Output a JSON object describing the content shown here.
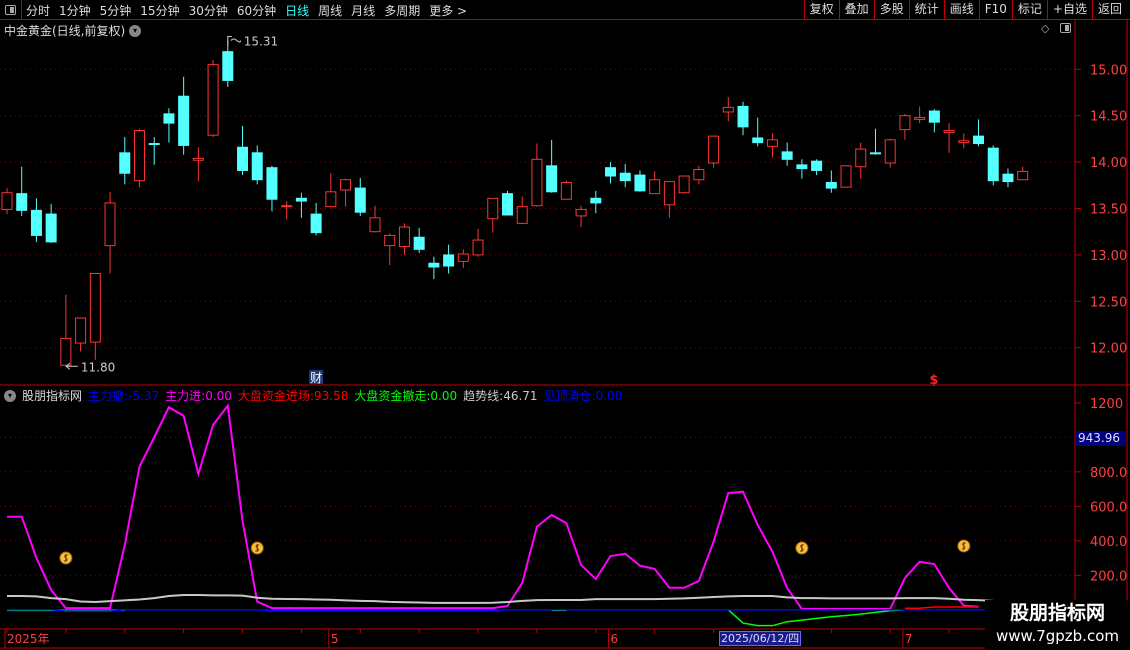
{
  "toolbar": {
    "periods": [
      "分时",
      "1分钟",
      "5分钟",
      "15分钟",
      "30分钟",
      "60分钟",
      "日线",
      "周线",
      "月线",
      "多周期",
      "更多 >"
    ],
    "active_period": "日线",
    "buttons": [
      "复权",
      "叠加",
      "多股",
      "统计",
      "画线",
      "F10",
      "标记",
      "+自选",
      "返回"
    ]
  },
  "title": "中金黄金(日线,前复权)",
  "colors": {
    "up": "#ff3333",
    "down": "#54ffff",
    "grid": "#8b0000",
    "axis": "#c00000",
    "main": "#ff00ff",
    "trend": "#c8c8c8",
    "in": "#ff0000",
    "out": "#00ff00",
    "zero": "#0000ff"
  },
  "price_axis": {
    "ticks": [
      "15.00",
      "14.50",
      "14.00",
      "13.50",
      "13.00",
      "12.50",
      "12.00"
    ]
  },
  "markers": {
    "high": "15.31",
    "low": "11.80",
    "finance_badge": "财",
    "signal_badge": "$"
  },
  "indicator": {
    "name": "股朋指标网",
    "items": [
      {
        "label": "主力撤",
        "value": "-5.37",
        "color": "#0000ff"
      },
      {
        "label": "主力进",
        "value": "0.00",
        "color": "#ff00ff"
      },
      {
        "label": "大盘资金进场",
        "value": "93.58",
        "color": "#ff0000"
      },
      {
        "label": "大盘资金撤走",
        "value": "0.00",
        "color": "#00ff00"
      },
      {
        "label": "趋势线",
        "value": "46.71",
        "color": "#c8c8c8"
      },
      {
        "label": "见顶清仓",
        "value": "0.00",
        "color": "#0000ff"
      }
    ],
    "axis_ticks": [
      "1200",
      "800.0",
      "600.0",
      "400.0",
      "200.0"
    ],
    "current_value": "943.96"
  },
  "date_axis": {
    "labels": [
      {
        "text": "2025年",
        "index": 0
      },
      {
        "text": "5",
        "index": 22
      },
      {
        "text": "6",
        "index": 41
      },
      {
        "text": "7",
        "index": 61
      }
    ],
    "selected": "2025/06/12/四"
  },
  "watermark": {
    "name": "股朋指标网",
    "url": "www.7gpzb.com"
  },
  "chart_data": [
    {
      "type": "candlestick",
      "ylim": [
        11.6,
        15.4
      ],
      "ohlc": [
        [
          13.49,
          13.72,
          13.44,
          13.67
        ],
        [
          13.66,
          13.95,
          13.42,
          13.48
        ],
        [
          13.48,
          13.61,
          13.14,
          13.21
        ],
        [
          13.44,
          13.55,
          13.13,
          13.14
        ],
        [
          11.81,
          12.57,
          11.8,
          12.1
        ],
        [
          12.05,
          12.32,
          11.96,
          12.32
        ],
        [
          12.06,
          12.8,
          11.87,
          12.8
        ],
        [
          13.1,
          13.68,
          12.8,
          13.56
        ],
        [
          14.1,
          14.27,
          13.76,
          13.88
        ],
        [
          13.8,
          14.36,
          13.73,
          14.34
        ],
        [
          14.2,
          14.27,
          13.97,
          14.19
        ],
        [
          14.52,
          14.58,
          14.21,
          14.42
        ],
        [
          14.71,
          14.92,
          14.08,
          14.18
        ],
        [
          14.02,
          14.16,
          13.79,
          14.04
        ],
        [
          14.29,
          15.1,
          14.27,
          15.05
        ],
        [
          15.19,
          15.31,
          14.81,
          14.88
        ],
        [
          14.16,
          14.39,
          13.86,
          13.91
        ],
        [
          14.1,
          14.18,
          13.76,
          13.81
        ],
        [
          13.94,
          13.96,
          13.47,
          13.6
        ],
        [
          13.52,
          13.58,
          13.38,
          13.53
        ],
        [
          13.61,
          13.67,
          13.4,
          13.58
        ],
        [
          13.44,
          13.56,
          13.21,
          13.24
        ],
        [
          13.52,
          13.88,
          13.52,
          13.68
        ],
        [
          13.7,
          13.82,
          13.52,
          13.81
        ],
        [
          13.72,
          13.83,
          13.42,
          13.46
        ],
        [
          13.25,
          13.53,
          13.24,
          13.4
        ],
        [
          13.1,
          13.23,
          12.89,
          13.21
        ],
        [
          13.09,
          13.34,
          13.0,
          13.3
        ],
        [
          13.19,
          13.29,
          13.02,
          13.06
        ],
        [
          12.91,
          12.98,
          12.74,
          12.87
        ],
        [
          13.0,
          13.11,
          12.8,
          12.88
        ],
        [
          12.93,
          13.06,
          12.86,
          13.01
        ],
        [
          13.0,
          13.28,
          12.98,
          13.16
        ],
        [
          13.39,
          13.61,
          13.24,
          13.61
        ],
        [
          13.66,
          13.69,
          13.43,
          13.43
        ],
        [
          13.34,
          13.63,
          13.33,
          13.52
        ],
        [
          13.53,
          14.2,
          13.52,
          14.03
        ],
        [
          13.96,
          14.24,
          13.67,
          13.68
        ],
        [
          13.6,
          13.8,
          13.6,
          13.78
        ],
        [
          13.42,
          13.53,
          13.3,
          13.49
        ],
        [
          13.61,
          13.69,
          13.45,
          13.56
        ],
        [
          13.94,
          14.0,
          13.77,
          13.85
        ],
        [
          13.88,
          13.98,
          13.73,
          13.8
        ],
        [
          13.86,
          13.91,
          13.68,
          13.69
        ],
        [
          13.66,
          13.9,
          13.66,
          13.81
        ],
        [
          13.54,
          13.79,
          13.4,
          13.79
        ],
        [
          13.67,
          13.85,
          13.66,
          13.85
        ],
        [
          13.81,
          13.96,
          13.76,
          13.92
        ],
        [
          13.99,
          14.28,
          13.94,
          14.28
        ],
        [
          14.54,
          14.7,
          14.44,
          14.59
        ],
        [
          14.6,
          14.65,
          14.29,
          14.38
        ],
        [
          14.26,
          14.48,
          14.17,
          14.21
        ],
        [
          14.17,
          14.31,
          14.05,
          14.24
        ],
        [
          14.11,
          14.21,
          13.96,
          14.03
        ],
        [
          13.97,
          14.03,
          13.82,
          13.93
        ],
        [
          14.01,
          14.03,
          13.86,
          13.91
        ],
        [
          13.78,
          13.91,
          13.67,
          13.72
        ],
        [
          13.73,
          13.96,
          13.73,
          13.96
        ],
        [
          13.95,
          14.21,
          13.82,
          14.14
        ],
        [
          14.1,
          14.36,
          14.08,
          14.09
        ],
        [
          13.99,
          14.25,
          13.94,
          14.24
        ],
        [
          14.35,
          14.52,
          14.24,
          14.5
        ],
        [
          14.46,
          14.6,
          14.42,
          14.48
        ],
        [
          14.55,
          14.57,
          14.32,
          14.43
        ],
        [
          14.32,
          14.42,
          14.1,
          14.34
        ],
        [
          14.21,
          14.31,
          14.15,
          14.23
        ],
        [
          14.28,
          14.46,
          14.17,
          14.2
        ],
        [
          14.15,
          14.18,
          13.75,
          13.8
        ],
        [
          13.87,
          13.93,
          13.73,
          13.79
        ],
        [
          13.81,
          13.95,
          13.81,
          13.9
        ]
      ],
      "finance_index": 21,
      "signal_index": 63
    },
    {
      "type": "line",
      "ylim": [
        -120,
        1300
      ],
      "series": [
        {
          "name": "主力进",
          "color": "#ff00ff",
          "values": [
            540,
            540,
            300,
            115,
            10,
            10,
            10,
            10,
            375,
            830,
            1000,
            1175,
            1125,
            788,
            1072,
            1184,
            515,
            47,
            10,
            10,
            10,
            10,
            10,
            10,
            10,
            10,
            10,
            10,
            10,
            10,
            10,
            10,
            10,
            10,
            22,
            155,
            482,
            550,
            503,
            260,
            178,
            312,
            325,
            256,
            237,
            128,
            128,
            167,
            395,
            677,
            685,
            492,
            337,
            126,
            5,
            5,
            5,
            5,
            5,
            5,
            5,
            184,
            279,
            265,
            126,
            24,
            18
          ]
        },
        {
          "name": "趋势线",
          "color": "#c8c8c8",
          "values": [
            80,
            80,
            78,
            68,
            62,
            48,
            45,
            50,
            55,
            60,
            68,
            80,
            86,
            86,
            84,
            84,
            82,
            70,
            64,
            63,
            62,
            60,
            58,
            55,
            52,
            50,
            46,
            44,
            42,
            40,
            40,
            40,
            40,
            41,
            45,
            52,
            56,
            57,
            57,
            57,
            62,
            62,
            62,
            62,
            62,
            64,
            66,
            70,
            74,
            78,
            80,
            80,
            80,
            72,
            68,
            68,
            66,
            66,
            66,
            66,
            66,
            68,
            68,
            68,
            64,
            58,
            56,
            52
          ]
        },
        {
          "name": "大盘资金撤走",
          "color": "#00ff00",
          "values": [
            -3,
            -3,
            -3,
            -3,
            -3,
            -3,
            -3,
            -3,
            -3,
            null,
            null,
            null,
            null,
            null,
            null,
            null,
            null,
            null,
            null,
            null,
            null,
            null,
            null,
            null,
            null,
            null,
            null,
            null,
            null,
            null,
            null,
            null,
            null,
            null,
            null,
            null,
            null,
            -3,
            -3,
            null,
            null,
            null,
            null,
            null,
            null,
            null,
            null,
            null,
            null,
            0,
            -77,
            -92,
            -92,
            -69,
            -60,
            -50,
            -40,
            -33,
            -25,
            -15,
            -5,
            0
          ]
        },
        {
          "name": "大盘资金进场",
          "color": "#ff0000",
          "values": [
            null,
            null,
            null,
            null,
            null,
            null,
            null,
            null,
            null,
            null,
            null,
            null,
            null,
            null,
            null,
            null,
            null,
            null,
            null,
            null,
            null,
            null,
            null,
            null,
            null,
            null,
            null,
            null,
            null,
            null,
            null,
            null,
            null,
            null,
            null,
            null,
            null,
            null,
            null,
            null,
            null,
            null,
            null,
            null,
            null,
            null,
            null,
            null,
            null,
            null,
            null,
            null,
            null,
            null,
            null,
            null,
            null,
            null,
            null,
            null,
            null,
            9,
            9,
            16,
            16,
            16,
            16
          ]
        },
        {
          "name": "主力撤",
          "color": "#0000ff",
          "values": [
            0,
            0,
            0,
            0,
            -8,
            -8,
            -8,
            -8,
            0,
            0,
            0,
            0,
            0,
            0,
            0,
            0,
            0,
            0,
            -8,
            -8,
            -8,
            -8,
            -8,
            -8,
            -8,
            -8,
            -8,
            -8,
            -8,
            -8,
            -8,
            -8,
            -8,
            -8,
            0,
            0,
            0,
            0,
            0,
            0,
            0,
            0,
            0,
            0,
            0,
            0,
            0,
            0,
            0,
            0,
            0,
            0,
            0,
            0,
            0,
            0,
            0,
            0,
            0,
            0,
            0,
            0,
            0,
            0,
            0,
            0,
            0,
            0,
            0,
            0
          ]
        }
      ],
      "signals": [
        {
          "index": 4,
          "value": 312
        },
        {
          "index": 17,
          "value": 370
        },
        {
          "index": 54,
          "value": 370
        },
        {
          "index": 65,
          "value": 382
        }
      ]
    }
  ]
}
